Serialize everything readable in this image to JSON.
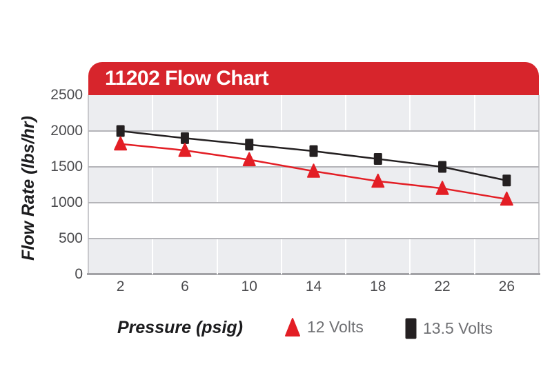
{
  "banner": {
    "title": "11202 Flow Chart"
  },
  "axes": {
    "x_label": "Pressure (psig)",
    "y_label": "Flow Rate (lbs/hr)"
  },
  "legend": {
    "items": [
      {
        "label": "12 Volts",
        "marker": "red-triangle"
      },
      {
        "label": "13.5 Volts",
        "marker": "black-square"
      }
    ]
  },
  "colors": {
    "banner_red": "#d7252c",
    "series_red": "#e31e25",
    "series_black": "#242021",
    "band_gray": "#ecedf0",
    "gridline_gray": "#b5b5b9",
    "axis_line": "#a2a2a6",
    "plot_edge": "#c9c9cd",
    "tick_text": "#4a4a4d",
    "legend_text": "#707174",
    "label_text": "#1c1c1e",
    "title_text": "#ffffff"
  },
  "chart_data": {
    "type": "line",
    "title": "11202 Flow Chart",
    "xlabel": "Pressure (psig)",
    "ylabel": "Flow Rate (lbs/hr)",
    "x": [
      2,
      6,
      10,
      14,
      18,
      22,
      26
    ],
    "x_ticks": [
      2,
      6,
      10,
      14,
      18,
      22,
      26
    ],
    "y_ticks": [
      0,
      500,
      1000,
      1500,
      2000,
      2500
    ],
    "x_gridlines": [
      4,
      8,
      12,
      16,
      20,
      24
    ],
    "xlim": [
      0,
      28
    ],
    "ylim": [
      0,
      2500
    ],
    "grid": "horizontal-gray-bands",
    "legend_position": "bottom",
    "series": [
      {
        "name": "13.5 Volts",
        "marker": "square",
        "color": "#242021",
        "values": [
          2000,
          1900,
          1810,
          1720,
          1610,
          1500,
          1310
        ]
      },
      {
        "name": "12 Volts",
        "marker": "triangle",
        "color": "#e31e25",
        "values": [
          1820,
          1730,
          1600,
          1440,
          1300,
          1200,
          1050
        ]
      }
    ]
  }
}
